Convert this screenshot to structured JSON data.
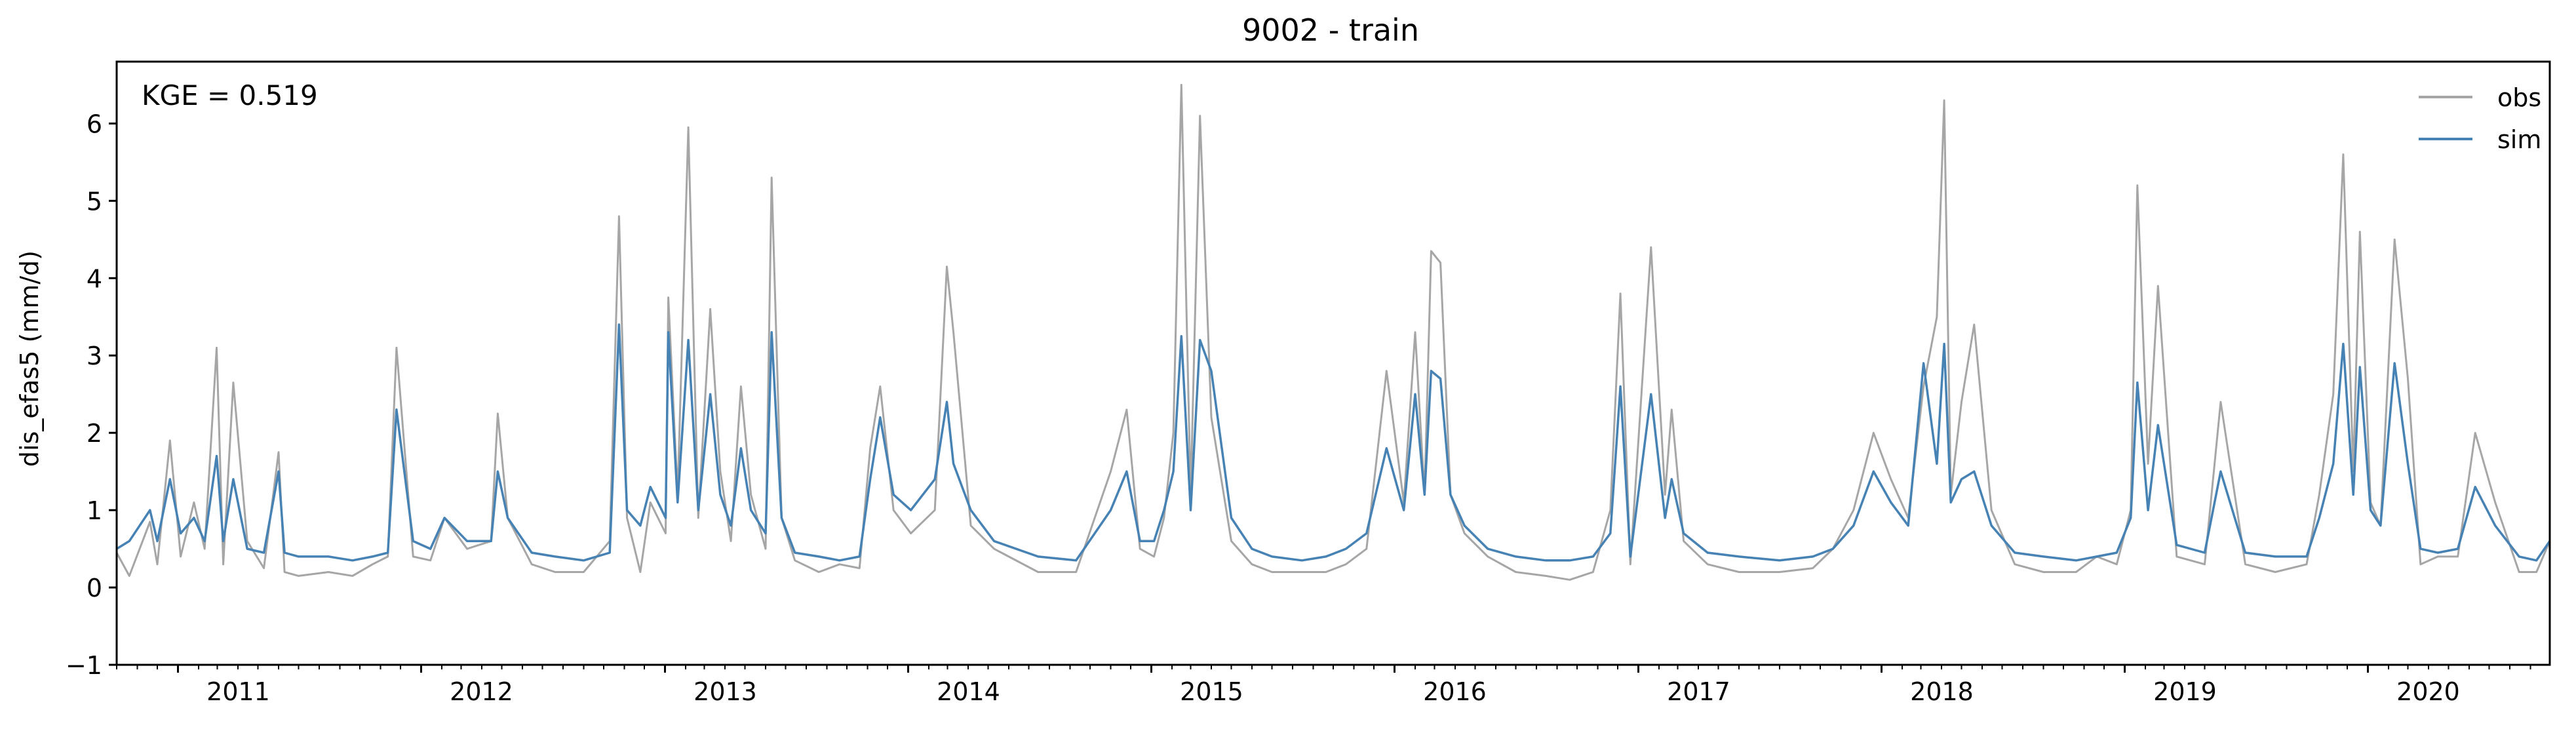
{
  "chart_data": {
    "type": "line",
    "title": "9002 - train",
    "ylabel": "dis_efas5 (mm/d)",
    "xlabel": "",
    "annotation": "KGE = 0.519",
    "ylim": [
      -1,
      6.8
    ],
    "xlim": [
      "2010-10-01",
      "2020-09-30"
    ],
    "yticks": [
      -1,
      0,
      1,
      2,
      3,
      4,
      5,
      6
    ],
    "xticks": [
      {
        "label": "2011",
        "date": "2011-01-01"
      },
      {
        "label": "2012",
        "date": "2012-01-01"
      },
      {
        "label": "2013",
        "date": "2013-01-01"
      },
      {
        "label": "2014",
        "date": "2014-01-01"
      },
      {
        "label": "2015",
        "date": "2015-01-01"
      },
      {
        "label": "2016",
        "date": "2016-01-01"
      },
      {
        "label": "2017",
        "date": "2017-01-01"
      },
      {
        "label": "2018",
        "date": "2018-01-01"
      },
      {
        "label": "2019",
        "date": "2019-01-01"
      },
      {
        "label": "2020",
        "date": "2020-01-01"
      }
    ],
    "legend": {
      "position": "top-right",
      "entries": [
        {
          "name": "obs",
          "color": "#a6a6a6"
        },
        {
          "name": "sim",
          "color": "#4682b4"
        }
      ]
    },
    "grid": false,
    "series": [
      {
        "name": "obs",
        "color": "#a6a6a6",
        "x": [
          "2010-10-01",
          "2010-10-20",
          "2010-11-20",
          "2010-12-01",
          "2010-12-20",
          "2011-01-05",
          "2011-01-25",
          "2011-02-10",
          "2011-02-28",
          "2011-03-10",
          "2011-03-25",
          "2011-04-15",
          "2011-05-10",
          "2011-06-01",
          "2011-06-10",
          "2011-07-01",
          "2011-08-15",
          "2011-09-20",
          "2011-10-20",
          "2011-11-12",
          "2011-11-25",
          "2011-12-20",
          "2012-01-15",
          "2012-02-05",
          "2012-03-10",
          "2012-04-15",
          "2012-04-25",
          "2012-05-10",
          "2012-06-15",
          "2012-07-20",
          "2012-09-01",
          "2012-10-10",
          "2012-10-24",
          "2012-11-05",
          "2012-11-25",
          "2012-12-10",
          "2013-01-02",
          "2013-01-06",
          "2013-01-20",
          "2013-02-05",
          "2013-02-20",
          "2013-03-10",
          "2013-03-25",
          "2013-04-10",
          "2013-04-25",
          "2013-05-10",
          "2013-06-01",
          "2013-06-10",
          "2013-06-25",
          "2013-07-15",
          "2013-08-20",
          "2013-09-20",
          "2013-10-20",
          "2013-11-05",
          "2013-11-20",
          "2013-12-10",
          "2014-01-05",
          "2014-02-10",
          "2014-02-28",
          "2014-03-10",
          "2014-04-05",
          "2014-05-10",
          "2014-07-15",
          "2014-09-10",
          "2014-11-01",
          "2014-11-25",
          "2014-12-15",
          "2015-01-05",
          "2015-01-20",
          "2015-02-03",
          "2015-02-15",
          "2015-03-01",
          "2015-03-15",
          "2015-04-01",
          "2015-05-01",
          "2015-06-01",
          "2015-07-01",
          "2015-08-15",
          "2015-09-20",
          "2015-10-20",
          "2015-11-20",
          "2015-12-20",
          "2016-01-15",
          "2016-02-01",
          "2016-02-15",
          "2016-02-25",
          "2016-03-10",
          "2016-03-25",
          "2016-04-15",
          "2016-05-20",
          "2016-07-01",
          "2016-08-15",
          "2016-09-20",
          "2016-10-25",
          "2016-11-20",
          "2016-12-05",
          "2016-12-20",
          "2017-01-20",
          "2017-02-10",
          "2017-02-20",
          "2017-03-10",
          "2017-04-15",
          "2017-06-01",
          "2017-08-01",
          "2017-09-20",
          "2017-10-20",
          "2017-11-20",
          "2017-12-20",
          "2018-01-15",
          "2018-02-10",
          "2018-03-05",
          "2018-03-25",
          "2018-04-05",
          "2018-04-15",
          "2018-05-01",
          "2018-05-20",
          "2018-06-15",
          "2018-07-20",
          "2018-09-01",
          "2018-10-20",
          "2018-11-20",
          "2018-12-20",
          "2019-01-10",
          "2019-01-20",
          "2019-02-05",
          "2019-02-20",
          "2019-03-20",
          "2019-05-01",
          "2019-05-25",
          "2019-07-01",
          "2019-08-15",
          "2019-10-01",
          "2019-10-20",
          "2019-11-10",
          "2019-11-25",
          "2019-12-10",
          "2019-12-20",
          "2020-01-05",
          "2020-01-20",
          "2020-02-10",
          "2020-03-01",
          "2020-03-20",
          "2020-04-15",
          "2020-05-15",
          "2020-06-10",
          "2020-07-10",
          "2020-08-15",
          "2020-09-10",
          "2020-09-30"
        ],
        "y": [
          0.45,
          0.15,
          0.85,
          0.3,
          1.9,
          0.4,
          1.1,
          0.5,
          3.1,
          0.3,
          2.65,
          0.6,
          0.25,
          1.75,
          0.2,
          0.15,
          0.2,
          0.15,
          0.3,
          0.4,
          3.1,
          0.4,
          0.35,
          0.9,
          0.5,
          0.6,
          2.25,
          0.9,
          0.3,
          0.2,
          0.2,
          0.6,
          4.8,
          0.9,
          0.2,
          1.1,
          0.7,
          3.75,
          1.2,
          5.95,
          0.9,
          3.6,
          1.5,
          0.6,
          2.6,
          1.2,
          0.5,
          5.3,
          0.9,
          0.35,
          0.2,
          0.3,
          0.25,
          1.8,
          2.6,
          1.0,
          0.7,
          1.0,
          4.15,
          3.3,
          0.8,
          0.5,
          0.2,
          0.2,
          1.5,
          2.3,
          0.5,
          0.4,
          0.9,
          2.0,
          6.5,
          1.2,
          6.1,
          2.2,
          0.6,
          0.3,
          0.2,
          0.2,
          0.2,
          0.3,
          0.5,
          2.8,
          1.1,
          3.3,
          1.2,
          4.35,
          4.2,
          1.2,
          0.7,
          0.4,
          0.2,
          0.15,
          0.1,
          0.2,
          1.0,
          3.8,
          0.3,
          4.4,
          1.2,
          2.3,
          0.6,
          0.3,
          0.2,
          0.2,
          0.25,
          0.5,
          1.0,
          2.0,
          1.4,
          0.9,
          2.6,
          3.5,
          6.3,
          1.2,
          2.4,
          3.4,
          1.0,
          0.3,
          0.2,
          0.2,
          0.4,
          0.3,
          1.0,
          5.2,
          1.6,
          3.9,
          0.4,
          0.3,
          2.4,
          0.3,
          0.2,
          0.3,
          1.2,
          2.5,
          5.6,
          1.5,
          4.6,
          1.1,
          0.8,
          4.5,
          2.7,
          0.3,
          0.4,
          0.4,
          2.0,
          1.1,
          0.2,
          0.2,
          0.6
        ]
      },
      {
        "name": "sim",
        "color": "#4682b4",
        "x": [
          "2010-10-01",
          "2010-10-20",
          "2010-11-20",
          "2010-12-01",
          "2010-12-20",
          "2011-01-05",
          "2011-01-25",
          "2011-02-10",
          "2011-02-28",
          "2011-03-10",
          "2011-03-25",
          "2011-04-15",
          "2011-05-10",
          "2011-06-01",
          "2011-06-10",
          "2011-07-01",
          "2011-08-15",
          "2011-09-20",
          "2011-10-20",
          "2011-11-12",
          "2011-11-25",
          "2011-12-20",
          "2012-01-15",
          "2012-02-05",
          "2012-03-10",
          "2012-04-15",
          "2012-04-25",
          "2012-05-10",
          "2012-06-15",
          "2012-07-20",
          "2012-09-01",
          "2012-10-10",
          "2012-10-24",
          "2012-11-05",
          "2012-11-25",
          "2012-12-10",
          "2013-01-02",
          "2013-01-06",
          "2013-01-20",
          "2013-02-05",
          "2013-02-20",
          "2013-03-10",
          "2013-03-25",
          "2013-04-10",
          "2013-04-25",
          "2013-05-10",
          "2013-06-01",
          "2013-06-10",
          "2013-06-25",
          "2013-07-15",
          "2013-08-20",
          "2013-09-20",
          "2013-10-20",
          "2013-11-05",
          "2013-11-20",
          "2013-12-10",
          "2014-01-05",
          "2014-02-10",
          "2014-02-28",
          "2014-03-10",
          "2014-04-05",
          "2014-05-10",
          "2014-07-15",
          "2014-09-10",
          "2014-11-01",
          "2014-11-25",
          "2014-12-15",
          "2015-01-05",
          "2015-01-20",
          "2015-02-03",
          "2015-02-15",
          "2015-03-01",
          "2015-03-15",
          "2015-04-01",
          "2015-05-01",
          "2015-06-01",
          "2015-07-01",
          "2015-08-15",
          "2015-09-20",
          "2015-10-20",
          "2015-11-20",
          "2015-12-20",
          "2016-01-15",
          "2016-02-01",
          "2016-02-15",
          "2016-02-25",
          "2016-03-10",
          "2016-03-25",
          "2016-04-15",
          "2016-05-20",
          "2016-07-01",
          "2016-08-15",
          "2016-09-20",
          "2016-10-25",
          "2016-11-20",
          "2016-12-05",
          "2016-12-20",
          "2017-01-20",
          "2017-02-10",
          "2017-02-20",
          "2017-03-10",
          "2017-04-15",
          "2017-06-01",
          "2017-08-01",
          "2017-09-20",
          "2017-10-20",
          "2017-11-20",
          "2017-12-20",
          "2018-01-15",
          "2018-02-10",
          "2018-03-05",
          "2018-03-25",
          "2018-04-05",
          "2018-04-15",
          "2018-05-01",
          "2018-05-20",
          "2018-06-15",
          "2018-07-20",
          "2018-09-01",
          "2018-10-20",
          "2018-11-20",
          "2018-12-20",
          "2019-01-10",
          "2019-01-20",
          "2019-02-05",
          "2019-02-20",
          "2019-03-20",
          "2019-05-01",
          "2019-05-25",
          "2019-07-01",
          "2019-08-15",
          "2019-10-01",
          "2019-10-20",
          "2019-11-10",
          "2019-11-25",
          "2019-12-10",
          "2019-12-20",
          "2020-01-05",
          "2020-01-20",
          "2020-02-10",
          "2020-03-01",
          "2020-03-20",
          "2020-04-15",
          "2020-05-15",
          "2020-06-10",
          "2020-07-10",
          "2020-08-15",
          "2020-09-10",
          "2020-09-30"
        ],
        "y": [
          0.5,
          0.6,
          1.0,
          0.6,
          1.4,
          0.7,
          0.9,
          0.6,
          1.7,
          0.6,
          1.4,
          0.5,
          0.45,
          1.5,
          0.45,
          0.4,
          0.4,
          0.35,
          0.4,
          0.45,
          2.3,
          0.6,
          0.5,
          0.9,
          0.6,
          0.6,
          1.5,
          0.9,
          0.45,
          0.4,
          0.35,
          0.45,
          3.4,
          1.0,
          0.8,
          1.3,
          0.9,
          3.3,
          1.1,
          3.2,
          1.0,
          2.5,
          1.2,
          0.8,
          1.8,
          1.0,
          0.7,
          3.3,
          0.9,
          0.45,
          0.4,
          0.35,
          0.4,
          1.4,
          2.2,
          1.2,
          1.0,
          1.4,
          2.4,
          1.6,
          1.0,
          0.6,
          0.4,
          0.35,
          1.0,
          1.5,
          0.6,
          0.6,
          1.0,
          1.5,
          3.25,
          1.0,
          3.2,
          2.8,
          0.9,
          0.5,
          0.4,
          0.35,
          0.4,
          0.5,
          0.7,
          1.8,
          1.0,
          2.5,
          1.2,
          2.8,
          2.7,
          1.2,
          0.8,
          0.5,
          0.4,
          0.35,
          0.35,
          0.4,
          0.7,
          2.6,
          0.4,
          2.5,
          0.9,
          1.4,
          0.7,
          0.45,
          0.4,
          0.35,
          0.4,
          0.5,
          0.8,
          1.5,
          1.1,
          0.8,
          2.9,
          1.6,
          3.15,
          1.1,
          1.4,
          1.5,
          0.8,
          0.45,
          0.4,
          0.35,
          0.4,
          0.45,
          0.9,
          2.65,
          1.0,
          2.1,
          0.55,
          0.45,
          1.5,
          0.45,
          0.4,
          0.4,
          0.9,
          1.6,
          3.15,
          1.2,
          2.85,
          1.0,
          0.8,
          2.9,
          1.6,
          0.5,
          0.45,
          0.5,
          1.3,
          0.8,
          0.4,
          0.35,
          0.6
        ]
      }
    ]
  }
}
